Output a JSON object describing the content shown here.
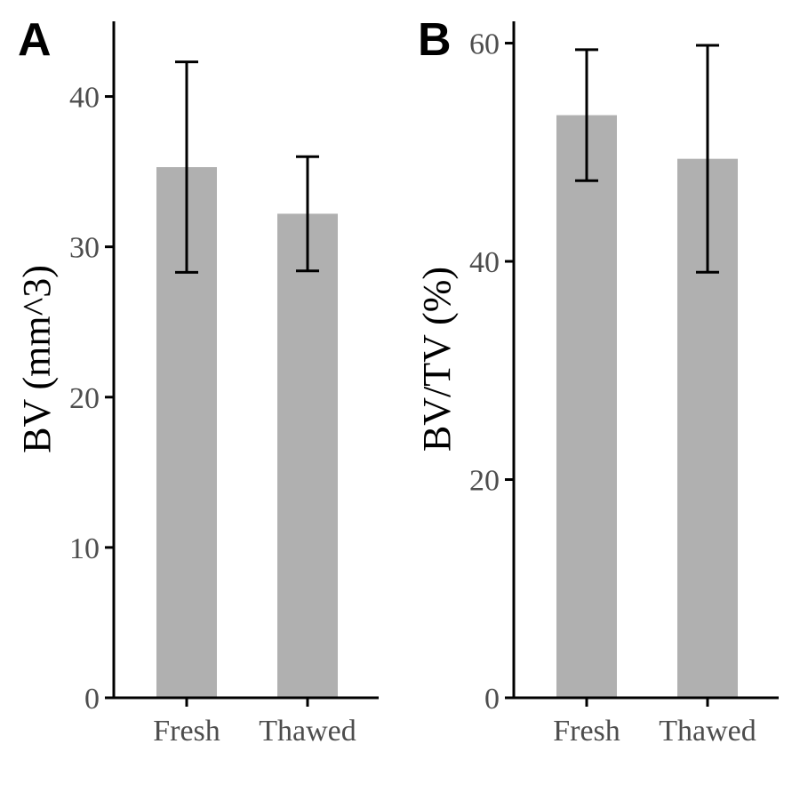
{
  "colors": {
    "bar": "#b0b0b0",
    "axis": "#000000",
    "tick_text": "#4d4d4d"
  },
  "chart_data": [
    {
      "type": "bar",
      "panel": "A",
      "categories": [
        "Fresh",
        "Thawed"
      ],
      "values": [
        35.3,
        32.2
      ],
      "error_low": [
        28.3,
        28.4
      ],
      "error_high": [
        42.3,
        36.0
      ],
      "ylabel": "BV (mm^3)",
      "xlabel": "",
      "ylim": [
        0,
        45
      ],
      "yticks": [
        0,
        10,
        20,
        30,
        40
      ],
      "grid": false
    },
    {
      "type": "bar",
      "panel": "B",
      "categories": [
        "Fresh",
        "Thawed"
      ],
      "values": [
        53.4,
        49.4
      ],
      "error_low": [
        47.4,
        39.0
      ],
      "error_high": [
        59.4,
        59.8
      ],
      "ylabel": "BV/TV (%)",
      "xlabel": "",
      "ylim": [
        0,
        62
      ],
      "yticks": [
        0,
        20,
        40,
        60
      ],
      "grid": false
    }
  ]
}
